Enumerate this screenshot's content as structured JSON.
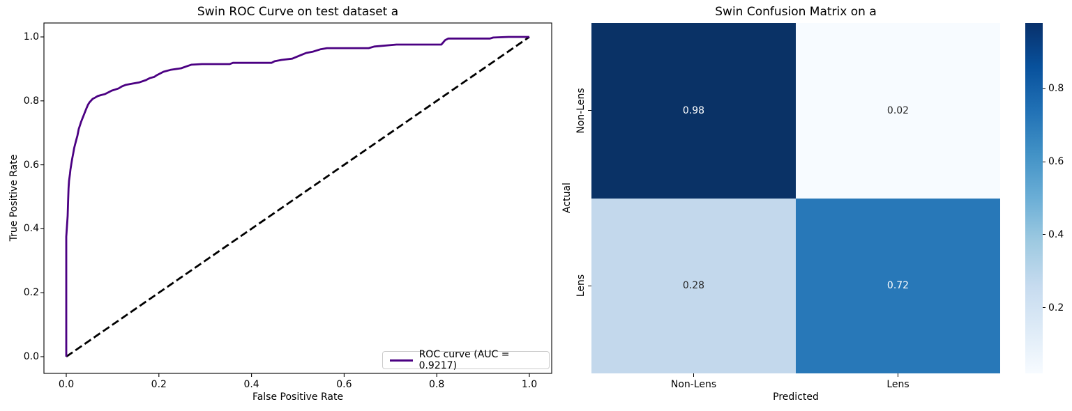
{
  "figure": {
    "background": "#ffffff"
  },
  "chart_data": [
    {
      "type": "line",
      "title": "Swin ROC Curve on test dataset a",
      "xlabel": "False Positive Rate",
      "ylabel": "True Positive Rate",
      "x_tick_labels": [
        "0.0",
        "0.2",
        "0.4",
        "0.6",
        "0.8",
        "1.0"
      ],
      "y_tick_labels": [
        "0.0",
        "0.2",
        "0.4",
        "0.6",
        "0.8",
        "1.0"
      ],
      "xlim": [
        -0.048,
        1.048
      ],
      "ylim": [
        -0.045,
        1.045
      ],
      "grid": false,
      "legend_position": "lower right",
      "auc": 0.9217,
      "series": [
        {
          "name": "ROC curve (AUC = 0.9217)",
          "color": "#4B0082",
          "style": "solid",
          "line_width": 2.8,
          "in_legend": true,
          "points": [
            [
              0.0,
              0.0
            ],
            [
              0.0,
              0.375
            ],
            [
              0.003,
              0.44
            ],
            [
              0.004,
              0.49
            ],
            [
              0.005,
              0.527
            ],
            [
              0.006,
              0.55
            ],
            [
              0.008,
              0.571
            ],
            [
              0.009,
              0.585
            ],
            [
              0.011,
              0.603
            ],
            [
              0.013,
              0.62
            ],
            [
              0.015,
              0.636
            ],
            [
              0.017,
              0.652
            ],
            [
              0.02,
              0.669
            ],
            [
              0.022,
              0.68
            ],
            [
              0.024,
              0.69
            ],
            [
              0.027,
              0.712
            ],
            [
              0.03,
              0.725
            ],
            [
              0.032,
              0.734
            ],
            [
              0.035,
              0.745
            ],
            [
              0.038,
              0.756
            ],
            [
              0.041,
              0.767
            ],
            [
              0.044,
              0.778
            ],
            [
              0.047,
              0.788
            ],
            [
              0.05,
              0.795
            ],
            [
              0.057,
              0.806
            ],
            [
              0.062,
              0.81
            ],
            [
              0.068,
              0.815
            ],
            [
              0.075,
              0.818
            ],
            [
              0.083,
              0.821
            ],
            [
              0.09,
              0.826
            ],
            [
              0.098,
              0.832
            ],
            [
              0.105,
              0.835
            ],
            [
              0.113,
              0.839
            ],
            [
              0.12,
              0.845
            ],
            [
              0.128,
              0.85
            ],
            [
              0.143,
              0.854
            ],
            [
              0.158,
              0.858
            ],
            [
              0.172,
              0.865
            ],
            [
              0.18,
              0.871
            ],
            [
              0.19,
              0.875
            ],
            [
              0.195,
              0.88
            ],
            [
              0.21,
              0.891
            ],
            [
              0.225,
              0.897
            ],
            [
              0.248,
              0.902
            ],
            [
              0.26,
              0.908
            ],
            [
              0.27,
              0.913
            ],
            [
              0.293,
              0.915
            ],
            [
              0.353,
              0.915
            ],
            [
              0.36,
              0.919
            ],
            [
              0.443,
              0.919
            ],
            [
              0.45,
              0.924
            ],
            [
              0.465,
              0.928
            ],
            [
              0.488,
              0.932
            ],
            [
              0.503,
              0.941
            ],
            [
              0.51,
              0.945
            ],
            [
              0.518,
              0.95
            ],
            [
              0.533,
              0.954
            ],
            [
              0.548,
              0.961
            ],
            [
              0.563,
              0.965
            ],
            [
              0.653,
              0.965
            ],
            [
              0.665,
              0.97
            ],
            [
              0.713,
              0.976
            ],
            [
              0.81,
              0.976
            ],
            [
              0.818,
              0.99
            ],
            [
              0.825,
              0.995
            ],
            [
              0.915,
              0.995
            ],
            [
              0.922,
              0.998
            ],
            [
              0.955,
              1.0
            ],
            [
              1.0,
              1.0
            ]
          ]
        },
        {
          "name": "chance-diagonal",
          "color": "#000000",
          "style": "dashed",
          "line_width": 2.8,
          "in_legend": false,
          "points": [
            [
              0.0,
              0.0
            ],
            [
              1.0,
              1.0
            ]
          ]
        }
      ]
    },
    {
      "type": "heatmap",
      "title": "Swin Confusion Matrix on a",
      "xlabel": "Predicted",
      "ylabel": "Actual",
      "x_categories": [
        "Non-Lens",
        "Lens"
      ],
      "y_categories": [
        "Non-Lens",
        "Lens"
      ],
      "values": [
        [
          0.98,
          0.02
        ],
        [
          0.28,
          0.72
        ]
      ],
      "cell_labels": [
        [
          "0.98",
          "0.02"
        ],
        [
          "0.28",
          "0.72"
        ]
      ],
      "cell_colors": [
        [
          "#0a3266",
          "#f7fbff"
        ],
        [
          "#c3d8ec",
          "#2878b8"
        ]
      ],
      "cell_text_colors": [
        [
          "#ffffff",
          "#262626"
        ],
        [
          "#262626",
          "#ffffff"
        ]
      ],
      "colormap": "Blues",
      "colorbar": {
        "vmin": 0.02,
        "vmax": 0.98,
        "tick_values": [
          0.2,
          0.4,
          0.6,
          0.8
        ],
        "tick_labels": [
          "0.2",
          "0.4",
          "0.6",
          "0.8"
        ],
        "gradient_stops": [
          "#f7fbff",
          "#deebf7",
          "#c6dbef",
          "#9ecae1",
          "#6baed6",
          "#4292c6",
          "#2171b5",
          "#08519c",
          "#08306b"
        ]
      }
    }
  ]
}
